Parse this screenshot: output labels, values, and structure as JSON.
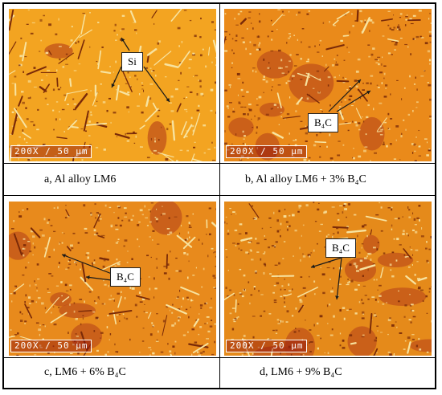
{
  "panels": [
    {
      "id": "a",
      "caption": "a, Al alloy LM6",
      "scale": "200X / 50 µm",
      "label": "Si",
      "base": "#f3a421"
    },
    {
      "id": "b",
      "caption": "b, Al alloy LM6 + 3% B₄C",
      "scale": "200X / 50 µm",
      "label": "B₄C",
      "base": "#ea8a1a"
    },
    {
      "id": "c",
      "caption": "c, LM6 + 6% B₄C",
      "scale": "200X / 50 µm",
      "label": "B₄C",
      "base": "#e88a1c"
    },
    {
      "id": "d",
      "caption": "d, LM6 + 9% B₄C",
      "scale": "200X / 50 µm",
      "label": "B₄C",
      "base": "#e58a1a"
    }
  ],
  "colors": {
    "grain_light": "#f7e3a0",
    "grain_dark": "#7a2a08",
    "particle": "#c0511a",
    "scalebar_text": "#ffffff",
    "arrow": "#1a1a1a"
  }
}
